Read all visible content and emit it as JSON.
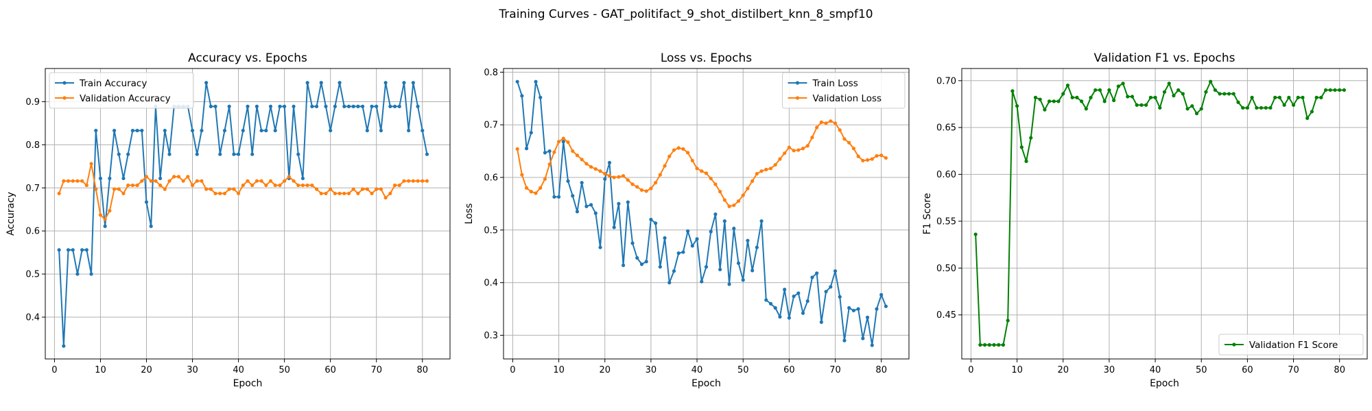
{
  "figure": {
    "suptitle": "Training Curves - GAT_politifact_9_shot_distilbert_knn_8_smpf10"
  },
  "chart_data": [
    {
      "type": "line",
      "title": "Accuracy vs. Epochs",
      "xlabel": "Epoch",
      "ylabel": "Accuracy",
      "xlim": [
        -2,
        86
      ],
      "ylim": [
        0.303,
        0.977
      ],
      "xticks": [
        0,
        10,
        20,
        30,
        40,
        50,
        60,
        70,
        80
      ],
      "yticks": [
        0.4,
        0.5,
        0.6,
        0.7,
        0.8,
        0.9
      ],
      "ytick_decimals": 1,
      "grid": true,
      "legend": "upper left",
      "series": [
        {
          "name": "Train Accuracy",
          "color": "#1f77b4",
          "values": [
            0.556,
            0.333,
            0.556,
            0.556,
            0.5,
            0.556,
            0.556,
            0.5,
            0.833,
            0.722,
            0.611,
            0.722,
            0.833,
            0.778,
            0.722,
            0.778,
            0.833,
            0.833,
            0.833,
            0.667,
            0.611,
            0.889,
            0.722,
            0.833,
            0.778,
            0.889,
            0.889,
            0.889,
            0.889,
            0.833,
            0.778,
            0.833,
            0.944,
            0.889,
            0.889,
            0.778,
            0.833,
            0.889,
            0.778,
            0.778,
            0.833,
            0.889,
            0.778,
            0.889,
            0.833,
            0.833,
            0.889,
            0.833,
            0.889,
            0.889,
            0.722,
            0.889,
            0.778,
            0.722,
            0.944,
            0.889,
            0.889,
            0.944,
            0.889,
            0.833,
            0.889,
            0.944,
            0.889,
            0.889,
            0.889,
            0.889,
            0.889,
            0.833,
            0.889,
            0.889,
            0.833,
            0.944,
            0.889,
            0.889,
            0.889,
            0.944,
            0.833,
            0.944,
            0.889,
            0.833,
            0.778
          ]
        },
        {
          "name": "Validation Accuracy",
          "color": "#ff7f0e",
          "values": [
            0.687,
            0.716,
            0.716,
            0.716,
            0.716,
            0.716,
            0.706,
            0.756,
            0.697,
            0.637,
            0.627,
            0.647,
            0.697,
            0.697,
            0.687,
            0.706,
            0.706,
            0.706,
            0.716,
            0.726,
            0.716,
            0.716,
            0.706,
            0.697,
            0.716,
            0.726,
            0.726,
            0.716,
            0.726,
            0.706,
            0.716,
            0.716,
            0.697,
            0.697,
            0.687,
            0.687,
            0.687,
            0.697,
            0.697,
            0.687,
            0.706,
            0.716,
            0.706,
            0.716,
            0.716,
            0.706,
            0.716,
            0.706,
            0.706,
            0.716,
            0.726,
            0.716,
            0.706,
            0.706,
            0.706,
            0.706,
            0.697,
            0.687,
            0.687,
            0.697,
            0.687,
            0.687,
            0.687,
            0.687,
            0.697,
            0.687,
            0.697,
            0.697,
            0.687,
            0.697,
            0.697,
            0.677,
            0.687,
            0.706,
            0.706,
            0.716,
            0.716,
            0.716,
            0.716,
            0.716,
            0.716
          ]
        }
      ]
    },
    {
      "type": "line",
      "title": "Loss vs. Epochs",
      "xlabel": "Epoch",
      "ylabel": "Loss",
      "xlim": [
        -2,
        86
      ],
      "ylim": [
        0.255,
        0.807
      ],
      "xticks": [
        0,
        10,
        20,
        30,
        40,
        50,
        60,
        70,
        80
      ],
      "yticks": [
        0.3,
        0.4,
        0.5,
        0.6,
        0.7,
        0.8
      ],
      "ytick_decimals": 1,
      "grid": true,
      "legend": "upper right",
      "series": [
        {
          "name": "Train Loss",
          "color": "#1f77b4",
          "values": [
            0.782,
            0.755,
            0.655,
            0.685,
            0.782,
            0.752,
            0.647,
            0.65,
            0.563,
            0.563,
            0.668,
            0.593,
            0.565,
            0.535,
            0.59,
            0.545,
            0.548,
            0.532,
            0.467,
            0.597,
            0.628,
            0.505,
            0.55,
            0.433,
            0.553,
            0.475,
            0.447,
            0.435,
            0.44,
            0.52,
            0.513,
            0.43,
            0.485,
            0.4,
            0.422,
            0.456,
            0.458,
            0.498,
            0.47,
            0.483,
            0.402,
            0.43,
            0.497,
            0.53,
            0.425,
            0.517,
            0.397,
            0.503,
            0.437,
            0.405,
            0.48,
            0.423,
            0.467,
            0.517,
            0.367,
            0.36,
            0.352,
            0.335,
            0.387,
            0.333,
            0.374,
            0.38,
            0.342,
            0.365,
            0.41,
            0.418,
            0.325,
            0.383,
            0.392,
            0.422,
            0.373,
            0.29,
            0.352,
            0.347,
            0.35,
            0.294,
            0.334,
            0.281,
            0.35,
            0.377,
            0.355
          ]
        },
        {
          "name": "Validation Loss",
          "color": "#ff7f0e",
          "values": [
            0.654,
            0.605,
            0.58,
            0.573,
            0.57,
            0.58,
            0.597,
            0.625,
            0.648,
            0.668,
            0.674,
            0.667,
            0.65,
            0.642,
            0.634,
            0.626,
            0.62,
            0.616,
            0.612,
            0.607,
            0.603,
            0.6,
            0.601,
            0.603,
            0.595,
            0.587,
            0.582,
            0.576,
            0.574,
            0.579,
            0.59,
            0.605,
            0.622,
            0.64,
            0.652,
            0.656,
            0.654,
            0.647,
            0.632,
            0.617,
            0.612,
            0.608,
            0.598,
            0.587,
            0.573,
            0.557,
            0.545,
            0.547,
            0.555,
            0.566,
            0.579,
            0.593,
            0.607,
            0.612,
            0.615,
            0.617,
            0.624,
            0.635,
            0.646,
            0.657,
            0.651,
            0.652,
            0.655,
            0.66,
            0.676,
            0.695,
            0.705,
            0.703,
            0.707,
            0.703,
            0.69,
            0.673,
            0.666,
            0.655,
            0.64,
            0.632,
            0.633,
            0.635,
            0.641,
            0.642,
            0.637
          ]
        }
      ]
    },
    {
      "type": "line",
      "title": "Validation F1 vs. Epochs",
      "xlabel": "Epoch",
      "ylabel": "F1 Score",
      "xlim": [
        -2,
        86
      ],
      "ylim": [
        0.403,
        0.713
      ],
      "xticks": [
        0,
        10,
        20,
        30,
        40,
        50,
        60,
        70,
        80
      ],
      "yticks": [
        0.45,
        0.5,
        0.55,
        0.6,
        0.65,
        0.7
      ],
      "ytick_decimals": 2,
      "grid": true,
      "legend": "lower right",
      "series": [
        {
          "name": "Validation F1 Score",
          "color": "#008000",
          "values": [
            0.536,
            0.418,
            0.418,
            0.418,
            0.418,
            0.418,
            0.418,
            0.444,
            0.689,
            0.673,
            0.629,
            0.614,
            0.639,
            0.682,
            0.68,
            0.669,
            0.678,
            0.678,
            0.678,
            0.686,
            0.695,
            0.682,
            0.682,
            0.678,
            0.67,
            0.682,
            0.69,
            0.69,
            0.678,
            0.69,
            0.679,
            0.694,
            0.697,
            0.683,
            0.683,
            0.674,
            0.674,
            0.674,
            0.682,
            0.682,
            0.671,
            0.688,
            0.697,
            0.684,
            0.69,
            0.686,
            0.67,
            0.673,
            0.665,
            0.67,
            0.688,
            0.699,
            0.69,
            0.686,
            0.686,
            0.686,
            0.686,
            0.677,
            0.671,
            0.671,
            0.682,
            0.671,
            0.671,
            0.671,
            0.671,
            0.682,
            0.682,
            0.674,
            0.682,
            0.674,
            0.682,
            0.682,
            0.66,
            0.667,
            0.682,
            0.682,
            0.69,
            0.69,
            0.69,
            0.69,
            0.69
          ]
        }
      ]
    }
  ]
}
